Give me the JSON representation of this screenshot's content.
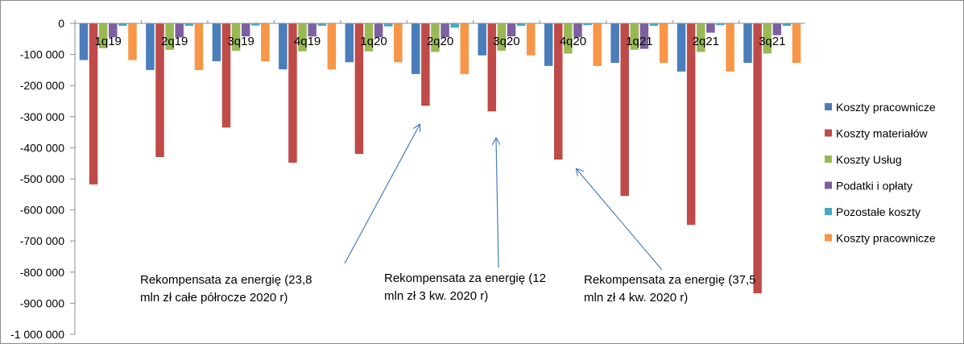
{
  "chart_data": {
    "type": "bar",
    "categories": [
      "1q19",
      "2q19",
      "3q19",
      "4q19",
      "1q20",
      "2q20",
      "3q20",
      "4q20",
      "1q21",
      "2q21",
      "3q21"
    ],
    "series": [
      {
        "name": "Koszty pracownicze",
        "color": "#4a7ebb",
        "values": [
          -118000,
          -150000,
          -122000,
          -148000,
          -125000,
          -163000,
          -103000,
          -137000,
          -127000,
          -155000,
          -127000
        ]
      },
      {
        "name": "Koszty materiałów",
        "color": "#be4b48",
        "values": [
          -518000,
          -430000,
          -335000,
          -448000,
          -420000,
          -265000,
          -283000,
          -438000,
          -555000,
          -648000,
          -868000
        ]
      },
      {
        "name": "Koszty Usług",
        "color": "#98b954",
        "values": [
          -80000,
          -85000,
          -88000,
          -90000,
          -90000,
          -92000,
          -88000,
          -97000,
          -85000,
          -92000,
          -97000
        ]
      },
      {
        "name": "Podatki i opłaty",
        "color": "#7d60a0",
        "values": [
          -45000,
          -45000,
          -42000,
          -42000,
          -45000,
          -45000,
          -42000,
          -45000,
          -82000,
          -30000,
          -38000
        ]
      },
      {
        "name": "Pozostałe koszty",
        "color": "#46aac5",
        "values": [
          -8000,
          -8000,
          -7000,
          -8000,
          -10000,
          -14000,
          -8000,
          -6000,
          -8000,
          -6000,
          -8000
        ]
      },
      {
        "name": "Koszty pracownicze",
        "color": "#f79646",
        "values": [
          -118000,
          -150000,
          -122000,
          -148000,
          -125000,
          -163000,
          -103000,
          -137000,
          -127000,
          -155000,
          -127000
        ]
      }
    ],
    "ylim": [
      -1000000,
      0
    ],
    "yticks": [
      0,
      -100000,
      -200000,
      -300000,
      -400000,
      -500000,
      -600000,
      -700000,
      -800000,
      -900000,
      -1000000
    ],
    "ytick_labels": [
      "0",
      "-100 000",
      "-200 000",
      "-300 000",
      "-400 000",
      "-500 000",
      "-600 000",
      "-700 000",
      "-800 000",
      "-900 000",
      "-1 000 000"
    ],
    "grid": false,
    "legend": "right",
    "annotations": [
      {
        "lines": [
          "Rekompensata za energię (23,8",
          "mln zł całe półrocze 2020 r)"
        ]
      },
      {
        "lines": [
          "Rekompensata za energię (12",
          "mln zł 3 kw. 2020 r)"
        ]
      },
      {
        "lines": [
          "Rekompensata za energię (37,5",
          "mln zł 4 kw. 2020 r)"
        ]
      }
    ]
  }
}
